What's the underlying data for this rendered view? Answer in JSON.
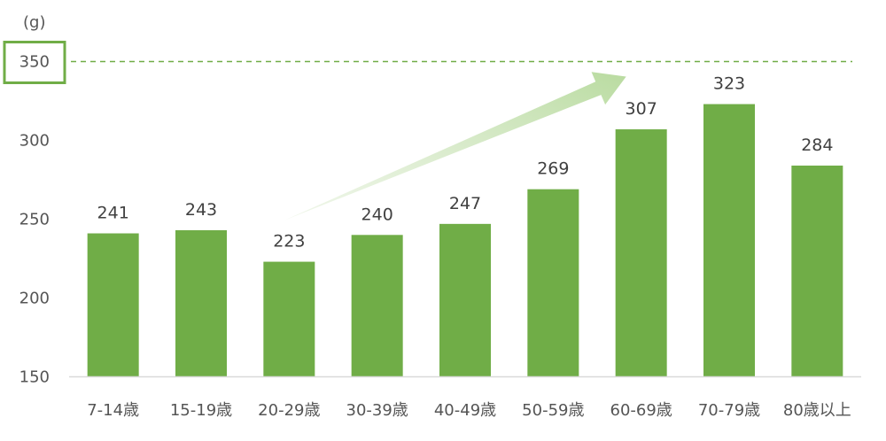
{
  "chart_data": {
    "type": "bar",
    "unit_label": "(g)",
    "categories": [
      "7-14歳",
      "15-19歳",
      "20-29歳",
      "30-39歳",
      "40-49歳",
      "50-59歳",
      "60-69歳",
      "70-79歳",
      "80歳以上"
    ],
    "values": [
      241,
      243,
      223,
      240,
      247,
      269,
      307,
      323,
      284
    ],
    "y_ticks": [
      "150",
      "200",
      "250",
      "300",
      "350"
    ],
    "ylim": [
      150,
      350
    ],
    "target_line": 350,
    "highlighted_tick": "350",
    "trend_arrow": {
      "from_category": "20-29歳",
      "to_category": "60-69歳"
    },
    "grid": false,
    "legend": "none",
    "colors": {
      "bar": "#70ad47",
      "target_line": "#70ad47",
      "highlight_box": "#70ad47",
      "arrow": "#c5e0b4",
      "axis": "#d9d9d9"
    }
  }
}
